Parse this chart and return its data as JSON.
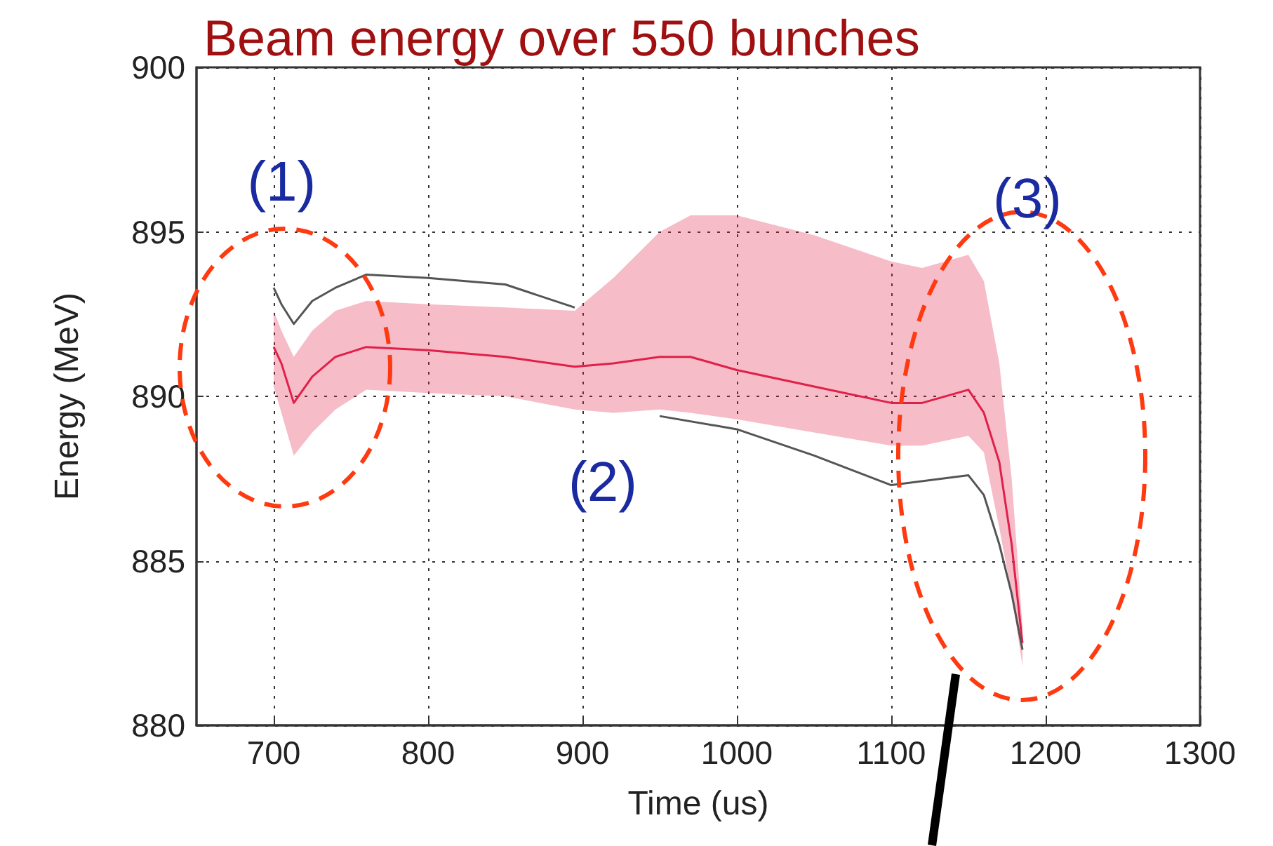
{
  "chart_data": {
    "type": "line",
    "title": "Beam energy over 550 bunches",
    "xlabel": "Time (us)",
    "ylabel": "Energy (MeV)",
    "x": [
      700,
      705,
      713,
      725,
      740,
      760,
      800,
      850,
      895,
      920,
      950,
      970,
      1000,
      1050,
      1100,
      1120,
      1150,
      1160,
      1170,
      1178,
      1185
    ],
    "series": [
      {
        "color": "#e0204a",
        "values": [
          891.5,
          891.0,
          889.8,
          890.6,
          891.2,
          891.5,
          891.4,
          891.2,
          890.9,
          891.0,
          891.2,
          891.2,
          890.8,
          890.3,
          889.8,
          889.8,
          890.2,
          889.5,
          888.0,
          885.5,
          882.5
        ],
        "lower": [
          890.3,
          889.5,
          888.2,
          888.9,
          889.6,
          890.2,
          890.1,
          890.0,
          889.6,
          889.5,
          889.6,
          889.5,
          889.3,
          888.9,
          888.5,
          888.5,
          888.8,
          888.3,
          886.0,
          884.0,
          881.8
        ],
        "upper": [
          892.6,
          892.0,
          891.2,
          892.0,
          892.6,
          892.9,
          892.8,
          892.7,
          892.6,
          893.6,
          895.0,
          895.5,
          895.5,
          894.9,
          894.1,
          893.9,
          894.3,
          893.5,
          891.0,
          887.5,
          883.0
        ]
      },
      {
        "color": "#555555",
        "x": [
          700,
          705,
          713,
          725,
          740,
          760,
          800,
          850,
          895
        ],
        "values": [
          893.3,
          892.8,
          892.2,
          892.9,
          893.3,
          893.7,
          893.6,
          893.4,
          892.7
        ]
      },
      {
        "color": "#555555",
        "x": [
          950,
          1000,
          1050,
          1100,
          1150,
          1160,
          1170,
          1178,
          1185
        ],
        "values": [
          889.4,
          889.0,
          888.2,
          887.3,
          887.6,
          887.0,
          885.5,
          884.0,
          882.3
        ]
      }
    ],
    "xlim": [
      650,
      1300
    ],
    "xticks": [
      700,
      800,
      900,
      1000,
      1100,
      1200,
      1300
    ],
    "ylim": [
      880,
      900
    ],
    "yticks": [
      880,
      885,
      890,
      895,
      900
    ],
    "grid": true,
    "marker": "none",
    "line_style": "solid",
    "annotations": [
      "(1)",
      "(2)",
      "(3)"
    ]
  }
}
